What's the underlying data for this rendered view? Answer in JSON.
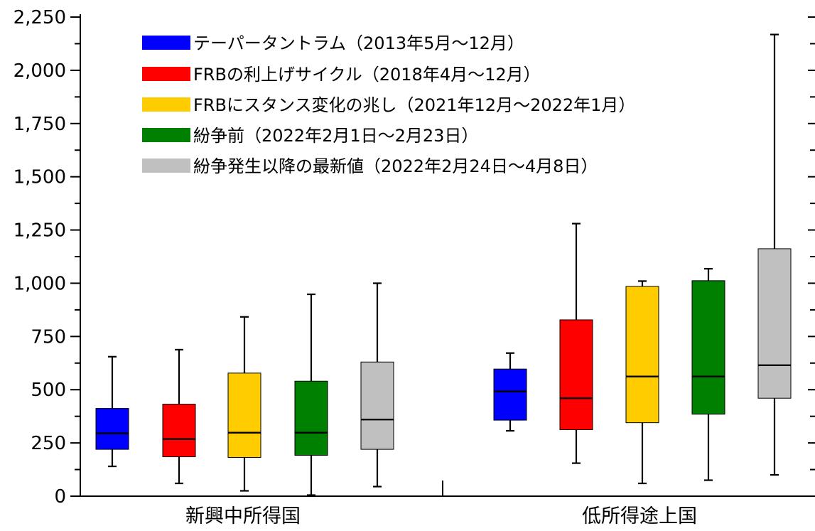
{
  "chart_data": {
    "type": "box",
    "categories": [
      "新興中所得国",
      "低所得途上国"
    ],
    "ylim": [
      0,
      2250
    ],
    "yticks": [
      0,
      250,
      500,
      750,
      1000,
      1250,
      1500,
      1750,
      2000,
      2250
    ],
    "ytick_labels": [
      "0",
      "250",
      "500",
      "750",
      "1,000",
      "1,250",
      "1,500",
      "1,750",
      "2,000",
      "2,250"
    ],
    "grid": false,
    "legend_position": "top",
    "series": [
      {
        "name": "テーパータントラム（2013年5月～12月）",
        "color": "#0000ff",
        "boxes": [
          {
            "min": 140,
            "q1": 220,
            "median": 295,
            "q3": 412,
            "max": 655
          },
          {
            "min": 307,
            "q1": 357,
            "median": 492,
            "q3": 597,
            "max": 672
          }
        ]
      },
      {
        "name": "FRBの利上げサイクル（2018年4月～12月）",
        "color": "#ff0000",
        "boxes": [
          {
            "min": 60,
            "q1": 185,
            "median": 268,
            "q3": 432,
            "max": 688
          },
          {
            "min": 155,
            "q1": 312,
            "median": 460,
            "q3": 828,
            "max": 1280
          }
        ]
      },
      {
        "name": "FRBにスタンス変化の兆し（2021年12月～2022年1月）",
        "color": "#ffcc00",
        "boxes": [
          {
            "min": 25,
            "q1": 182,
            "median": 298,
            "q3": 578,
            "max": 842
          },
          {
            "min": 60,
            "q1": 345,
            "median": 562,
            "q3": 985,
            "max": 1010
          }
        ]
      },
      {
        "name": "紛争前（2022年2月1日～2月23日）",
        "color": "#008000",
        "boxes": [
          {
            "min": 5,
            "q1": 192,
            "median": 298,
            "q3": 540,
            "max": 948
          },
          {
            "min": 75,
            "q1": 385,
            "median": 562,
            "q3": 1012,
            "max": 1068
          }
        ]
      },
      {
        "name": "紛争発生以降の最新値（2022年2月24日～4月8日）",
        "color": "#c0c0c0",
        "boxes": [
          {
            "min": 45,
            "q1": 220,
            "median": 360,
            "q3": 630,
            "max": 1000
          },
          {
            "min": 100,
            "q1": 460,
            "median": 615,
            "q3": 1162,
            "max": 2168
          }
        ]
      }
    ]
  }
}
